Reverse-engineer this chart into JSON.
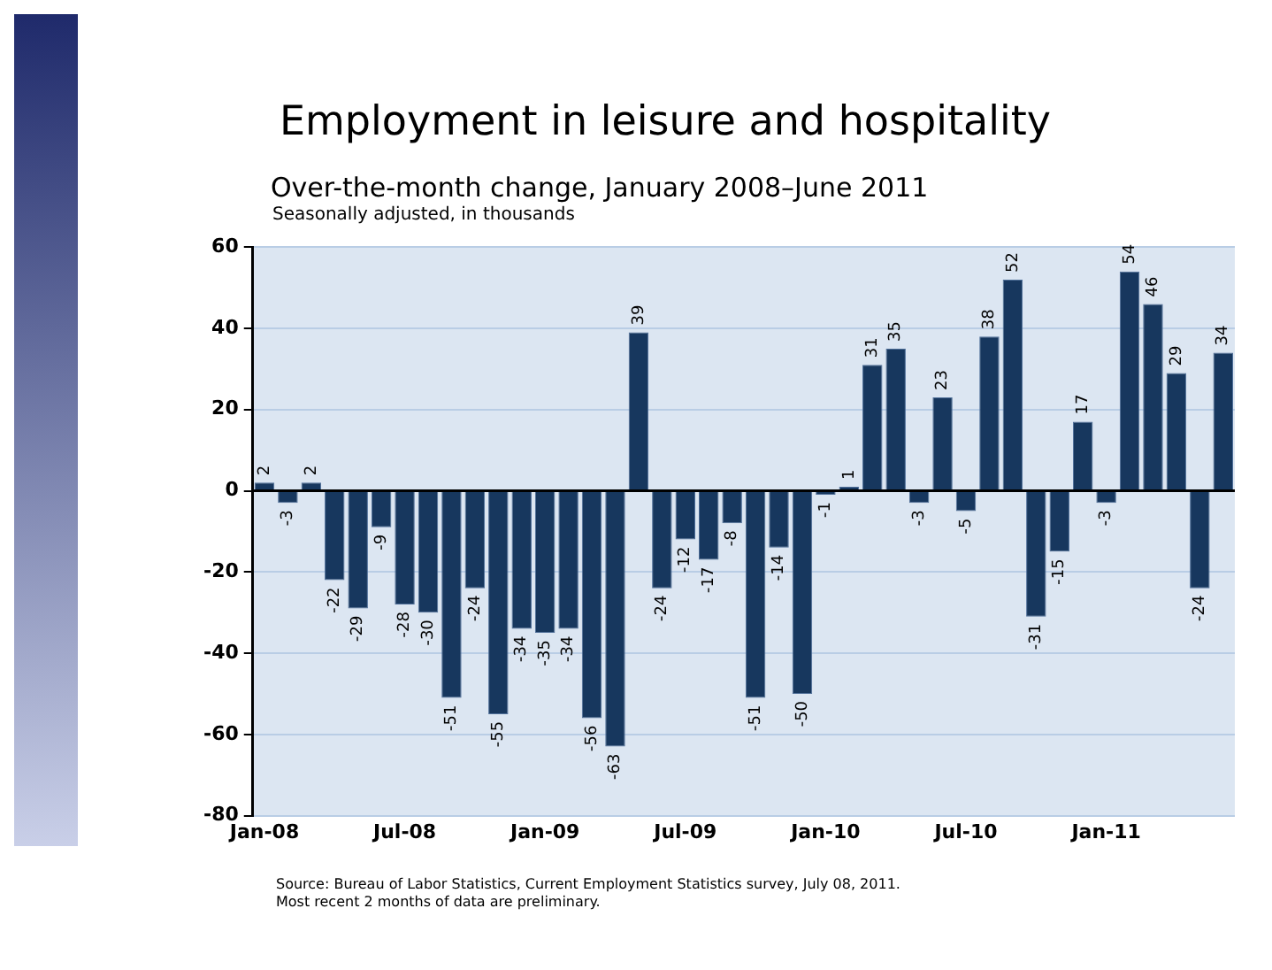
{
  "chart_data": {
    "type": "bar",
    "title": "Employment in leisure and hospitality",
    "subtitle": "Over-the-month change, January 2008–June 2011",
    "ylabel": "Seasonally adjusted, in thousands",
    "categories": [
      "Jan-08",
      null,
      null,
      null,
      null,
      null,
      "Jul-08",
      null,
      null,
      null,
      null,
      null,
      "Jan-09",
      null,
      null,
      null,
      null,
      null,
      "Jul-09",
      null,
      null,
      null,
      null,
      null,
      "Jan-10",
      null,
      null,
      null,
      null,
      null,
      "Jul-10",
      null,
      null,
      null,
      null,
      null,
      "Jan-11",
      null,
      null,
      null,
      null,
      null
    ],
    "values": [
      2,
      -3,
      2,
      -22,
      -29,
      -9,
      -28,
      -30,
      -51,
      -24,
      -55,
      -34,
      -35,
      -34,
      -56,
      -63,
      39,
      -24,
      -12,
      -17,
      -8,
      -51,
      -14,
      -50,
      -1,
      1,
      31,
      35,
      -3,
      23,
      -5,
      38,
      52,
      -31,
      -15,
      17,
      -3,
      54,
      46,
      29,
      -24,
      34
    ],
    "color": "#17375e",
    "ylim": [
      -80,
      60
    ],
    "yticks": [
      -80,
      -60,
      -40,
      -20,
      0,
      20,
      40,
      60
    ],
    "grid": "y",
    "data_labels": true,
    "legend": false,
    "annotations": [
      "Source: Bureau of Labor Statistics, Current Employment Statistics survey, July 08, 2011.",
      "Most recent 2 months of data are preliminary."
    ]
  }
}
